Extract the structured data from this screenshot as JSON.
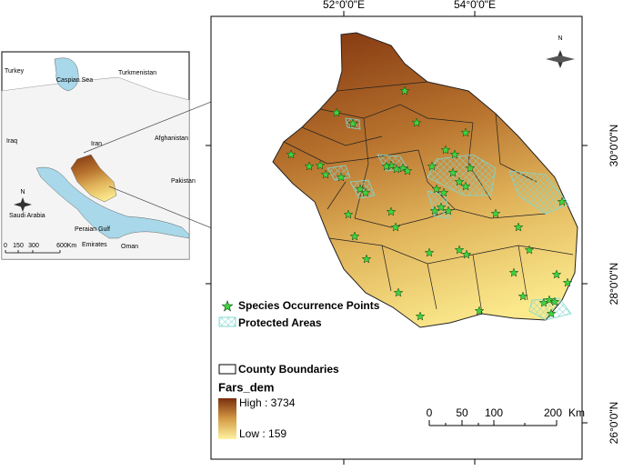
{
  "inset": {
    "labels": [
      "Turkey",
      "Caspian Sea",
      "Turkmenistan",
      "Iraq",
      "Iran",
      "Afghanistan",
      "Pakistan",
      "Saudi Arabia",
      "Peraian Gulf",
      "Emirates",
      "Oman"
    ],
    "north": "N",
    "scale": [
      "0",
      "150",
      "300",
      "600",
      "Km"
    ]
  },
  "main_map": {
    "top_coords": [
      "52°0'0\"E",
      "54°0'0\"E"
    ],
    "right_coords": [
      "30°0'0\"N",
      "28°0'0\"N",
      "26°0'0\"N"
    ],
    "north": "N",
    "legend": {
      "points": "Species Occurrence Points",
      "protected": "Protected Areas",
      "counties": "County Boundaries",
      "dem_title": "Fars_dem",
      "high": "High : 3734",
      "low": "Low : 159"
    },
    "scale": [
      "0",
      "50",
      "100",
      "200",
      "Km"
    ]
  }
}
